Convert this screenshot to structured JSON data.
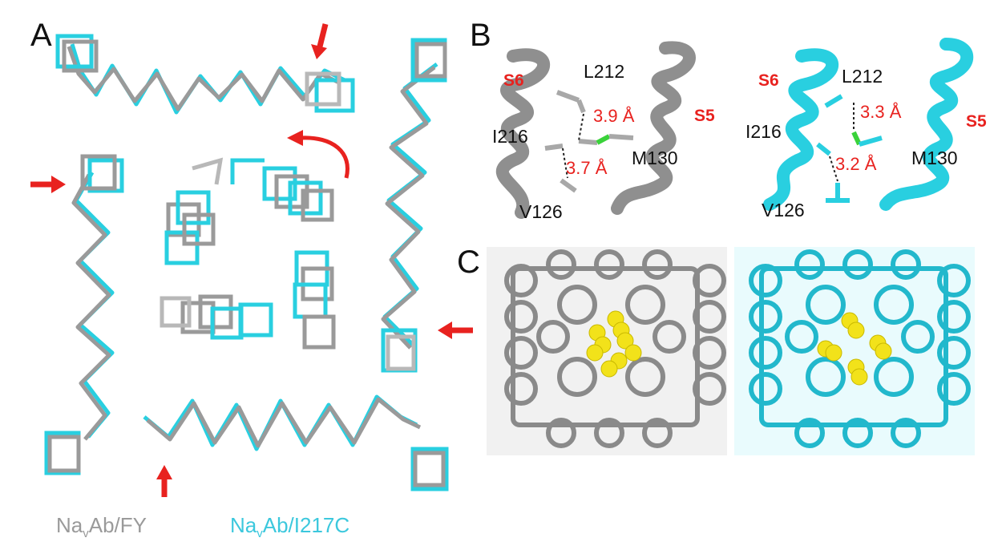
{
  "panels": {
    "a": "A",
    "b": "B",
    "c": "C"
  },
  "legend": {
    "gray_prefix": "Na",
    "gray_sub": "v",
    "gray_suffix": "Ab/FY",
    "cyan_prefix": "Na",
    "cyan_sub": "v",
    "cyan_suffix": "Ab/I217C"
  },
  "panel_b_left": {
    "helix_left": "S6",
    "helix_right": "S5",
    "res_top": "L212",
    "res_left": "I216",
    "res_right": "M130",
    "res_bottom": "V126",
    "dist_top": "3.9 Å",
    "dist_bottom": "3.7 Å"
  },
  "panel_b_right": {
    "helix_left": "S6",
    "helix_right": "S5",
    "res_top": "L212",
    "res_left": "I216",
    "res_right": "M130",
    "res_bottom": "V126",
    "dist_top": "3.3 Å",
    "dist_bottom": "3.2 Å"
  },
  "colors": {
    "gray": "#9a9a9a",
    "cyan": "#29cfe0",
    "red": "#e8221f",
    "yellow": "#f2e21a"
  }
}
